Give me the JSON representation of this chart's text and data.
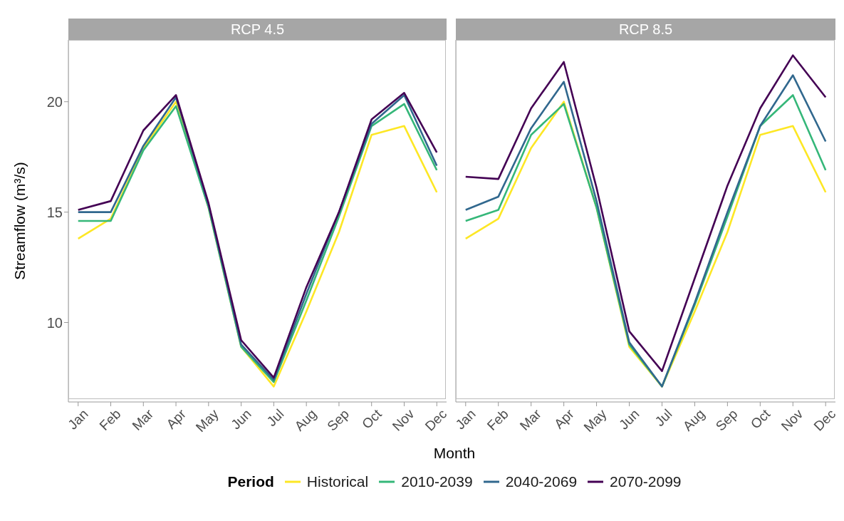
{
  "chart_data": [
    {
      "type": "line",
      "title": "RCP 4.5",
      "xlabel": "Month",
      "ylabel": "Streamflow (m³/s)",
      "legend_title": "Period",
      "legend": "bottom",
      "categories": [
        "Jan",
        "Feb",
        "Mar",
        "Apr",
        "May",
        "Jun",
        "Jul",
        "Aug",
        "Sep",
        "Oct",
        "Nov",
        "Dec"
      ],
      "ylim": [
        6.4,
        22.8
      ],
      "yticks": [
        10,
        15,
        20
      ],
      "series": [
        {
          "name": "Historical",
          "color": "#fde725",
          "values": [
            13.8,
            14.7,
            17.9,
            20.0,
            15.2,
            8.9,
            7.1,
            10.5,
            14.1,
            18.5,
            18.9,
            15.9
          ]
        },
        {
          "name": "2010-2039",
          "color": "#35b779",
          "values": [
            14.6,
            14.6,
            17.8,
            19.8,
            15.2,
            8.9,
            7.3,
            11.0,
            14.8,
            18.9,
            19.9,
            16.9
          ]
        },
        {
          "name": "2040-2069",
          "color": "#31688e",
          "values": [
            15.0,
            15.0,
            18.0,
            20.2,
            15.3,
            9.0,
            7.4,
            11.3,
            15.0,
            19.0,
            20.3,
            17.1
          ]
        },
        {
          "name": "2070-2099",
          "color": "#440154",
          "values": [
            15.1,
            15.5,
            18.7,
            20.3,
            15.4,
            9.2,
            7.5,
            11.6,
            15.0,
            19.2,
            20.4,
            17.7
          ]
        }
      ]
    },
    {
      "type": "line",
      "title": "RCP 8.5",
      "tick_labels": "x",
      "categories": [
        "Jan",
        "Feb",
        "Mar",
        "Apr",
        "May",
        "Jun",
        "Jul",
        "Aug",
        "Sep",
        "Oct",
        "Nov",
        "Dec"
      ],
      "ylim": [
        6.4,
        22.8
      ],
      "yticks": [
        10,
        15,
        20
      ],
      "series": [
        {
          "color": "#fde725",
          "values": [
            13.8,
            14.7,
            17.9,
            20.0,
            15.2,
            8.9,
            7.1,
            10.5,
            14.1,
            18.5,
            18.9,
            15.9
          ]
        },
        {
          "color": "#35b779",
          "values": [
            14.6,
            15.1,
            18.5,
            19.9,
            15.2,
            9.0,
            7.1,
            10.8,
            14.8,
            18.9,
            20.3,
            16.9
          ]
        },
        {
          "color": "#31688e",
          "values": [
            15.1,
            15.7,
            18.8,
            20.9,
            15.5,
            9.1,
            7.1,
            10.9,
            15.0,
            18.9,
            21.2,
            18.2
          ]
        },
        {
          "color": "#440154",
          "values": [
            16.6,
            16.5,
            19.7,
            21.8,
            16.1,
            9.6,
            7.8,
            12.0,
            16.2,
            19.7,
            22.1,
            20.2
          ]
        }
      ]
    }
  ]
}
